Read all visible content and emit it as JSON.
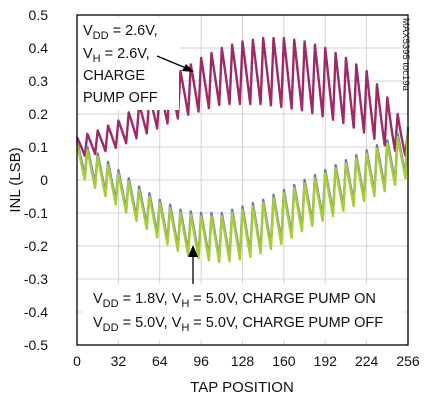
{
  "chart_data": {
    "type": "line",
    "xlabel": "TAP POSITION",
    "ylabel": "INL (LSB)",
    "xlim": [
      0,
      256
    ],
    "ylim": [
      -0.5,
      0.5
    ],
    "x_ticks": [
      "0",
      "32",
      "64",
      "96",
      "128",
      "160",
      "192",
      "224",
      "256"
    ],
    "y_ticks": [
      "0.5",
      "0.4",
      "0.3",
      "0.2",
      "0.1",
      "0",
      "-0.1",
      "-0.2",
      "-0.3",
      "-0.4",
      "-0.5"
    ],
    "grid": true,
    "watermark": "MAX5395 toc19a",
    "colors": {
      "magenta": "#9c2a66",
      "green": "#a6cc3c",
      "blue": "#6d79b5"
    },
    "series": [
      {
        "color": "magenta",
        "x": [
          0,
          16,
          32,
          48,
          64,
          80,
          96,
          112,
          128,
          144,
          160,
          176,
          192,
          208,
          224,
          240,
          256
        ],
        "y_peak": [
          0.13,
          0.15,
          0.18,
          0.23,
          0.28,
          0.33,
          0.37,
          0.4,
          0.42,
          0.43,
          0.43,
          0.42,
          0.4,
          0.37,
          0.33,
          0.25,
          0.15
        ],
        "y_trough": [
          0.07,
          0.08,
          0.1,
          0.13,
          0.16,
          0.19,
          0.21,
          0.23,
          0.23,
          0.23,
          0.22,
          0.21,
          0.19,
          0.17,
          0.14,
          0.1,
          0.07
        ]
      },
      {
        "color": "blue",
        "x": [
          0,
          16,
          32,
          48,
          64,
          80,
          96,
          112,
          128,
          144,
          160,
          176,
          192,
          208,
          224,
          240,
          256
        ],
        "y_peak": [
          0.12,
          0.08,
          0.03,
          -0.02,
          -0.06,
          -0.09,
          -0.1,
          -0.1,
          -0.08,
          -0.06,
          -0.03,
          0.0,
          0.03,
          0.06,
          0.09,
          0.12,
          0.16
        ],
        "y_trough": [
          0.03,
          -0.02,
          -0.07,
          -0.12,
          -0.17,
          -0.21,
          -0.23,
          -0.24,
          -0.23,
          -0.21,
          -0.18,
          -0.14,
          -0.11,
          -0.08,
          -0.05,
          -0.02,
          0.02
        ]
      },
      {
        "color": "green",
        "x": [
          0,
          16,
          32,
          48,
          64,
          80,
          96,
          112,
          128,
          144,
          160,
          176,
          192,
          208,
          224,
          240,
          256
        ],
        "y_peak": [
          0.11,
          0.07,
          0.02,
          -0.03,
          -0.07,
          -0.1,
          -0.11,
          -0.11,
          -0.09,
          -0.07,
          -0.04,
          -0.01,
          0.02,
          0.05,
          0.08,
          0.11,
          0.15
        ],
        "y_trough": [
          0.02,
          -0.03,
          -0.08,
          -0.13,
          -0.18,
          -0.22,
          -0.24,
          -0.25,
          -0.24,
          -0.22,
          -0.19,
          -0.15,
          -0.12,
          -0.09,
          -0.06,
          -0.03,
          0.01
        ]
      }
    ],
    "annotations": {
      "top_left": [
        "VDD = 2.6V,",
        "VH = 2.6V,",
        "CHARGE",
        "PUMP OFF"
      ],
      "bottom": [
        "VDD = 1.8V, VH = 5.0V, CHARGE PUMP ON",
        "VDD = 5.0V, VH = 5.0V, CHARGE PUMP OFF"
      ]
    }
  },
  "labels": {
    "top": {
      "l1": {
        "p1": "V",
        "sub": "DD",
        "p2": " = 2.6V,"
      },
      "l2": {
        "p1": "V",
        "sub": "H",
        "p2": " = 2.6V,"
      },
      "l3": "CHARGE",
      "l4": "PUMP OFF"
    },
    "bottom": {
      "l1": {
        "p1": "V",
        "s1": "DD",
        "p2": " = 1.8V, V",
        "s2": "H",
        "p3": " = 5.0V, CHARGE PUMP ON"
      },
      "l2": {
        "p1": "V",
        "s1": "DD",
        "p2": " = 5.0V, V",
        "s2": "H",
        "p3": " = 5.0V, CHARGE PUMP OFF"
      }
    }
  }
}
